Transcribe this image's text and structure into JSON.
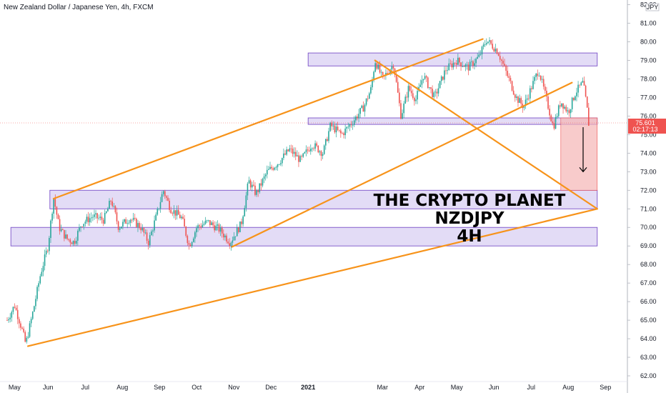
{
  "header": {
    "title": "New Zealand Dollar / Japanese Yen, 4h, FXCM"
  },
  "axis": {
    "currency": "JPY",
    "current_price": "75.601",
    "countdown": "02:17:13"
  },
  "overlay": {
    "line1": "THE CRYPTO PLANET",
    "line2": "NZDJPY",
    "line3": "4H"
  },
  "colors": {
    "background": "#ffffff",
    "zone_fill": "#d9d0f3",
    "zone_stroke": "#7b52c9",
    "trendline": "#f7931a",
    "candle_up": "#26a69a",
    "candle_down": "#ef5350",
    "target_box": "#f5b5b5",
    "price_tag": "#ef5350"
  },
  "chart_data": {
    "type": "candlestick",
    "symbol": "NZDJPY",
    "timeframe": "4h",
    "source": "FXCM",
    "y_axis_ticks": [
      62.0,
      63.0,
      64.0,
      65.0,
      66.0,
      67.0,
      68.0,
      69.0,
      70.0,
      71.0,
      72.0,
      73.0,
      74.0,
      75.0,
      76.0,
      77.0,
      78.0,
      79.0,
      80.0,
      81.0,
      82.0
    ],
    "x_axis_ticks": [
      {
        "label": "May",
        "t": 0.3
      },
      {
        "label": "Jun",
        "t": 1.2
      },
      {
        "label": "Jul",
        "t": 2.2
      },
      {
        "label": "Aug",
        "t": 3.2
      },
      {
        "label": "Sep",
        "t": 4.2
      },
      {
        "label": "Oct",
        "t": 5.2
      },
      {
        "label": "Nov",
        "t": 6.2
      },
      {
        "label": "Dec",
        "t": 7.2
      },
      {
        "label": "2021",
        "t": 8.2
      },
      {
        "label": "Mar",
        "t": 10.2
      },
      {
        "label": "Apr",
        "t": 11.2
      },
      {
        "label": "May",
        "t": 12.2
      },
      {
        "label": "Jun",
        "t": 13.2
      },
      {
        "label": "Jul",
        "t": 14.2
      },
      {
        "label": "Aug",
        "t": 15.2
      },
      {
        "label": "Sep",
        "t": 16.2
      }
    ],
    "ylim": [
      61.9,
      82.2
    ],
    "xlim": [
      0.1,
      16.5
    ],
    "price_path": [
      [
        0.1,
        65.0
      ],
      [
        0.3,
        65.8
      ],
      [
        0.5,
        64.5
      ],
      [
        0.6,
        63.7
      ],
      [
        0.8,
        65.5
      ],
      [
        1.0,
        67.5
      ],
      [
        1.2,
        69.0
      ],
      [
        1.35,
        71.6
      ],
      [
        1.5,
        70.0
      ],
      [
        1.7,
        69.4
      ],
      [
        1.9,
        69.2
      ],
      [
        2.1,
        70.2
      ],
      [
        2.4,
        70.6
      ],
      [
        2.7,
        70.4
      ],
      [
        2.9,
        71.5
      ],
      [
        3.1,
        70.0
      ],
      [
        3.4,
        70.5
      ],
      [
        3.7,
        70.0
      ],
      [
        3.9,
        69.2
      ],
      [
        4.1,
        70.5
      ],
      [
        4.3,
        72.0
      ],
      [
        4.5,
        71.0
      ],
      [
        4.8,
        70.5
      ],
      [
        5.0,
        69.0
      ],
      [
        5.2,
        70.0
      ],
      [
        5.5,
        70.3
      ],
      [
        5.8,
        69.9
      ],
      [
        6.1,
        69.2
      ],
      [
        6.4,
        70.2
      ],
      [
        6.6,
        72.5
      ],
      [
        6.8,
        71.8
      ],
      [
        7.1,
        73.0
      ],
      [
        7.4,
        73.5
      ],
      [
        7.7,
        74.2
      ],
      [
        8.0,
        73.6
      ],
      [
        8.3,
        74.5
      ],
      [
        8.6,
        74.0
      ],
      [
        8.8,
        75.5
      ],
      [
        9.1,
        75.0
      ],
      [
        9.4,
        75.7
      ],
      [
        9.7,
        76.5
      ],
      [
        9.9,
        77.5
      ],
      [
        10.0,
        79.0
      ],
      [
        10.2,
        78.0
      ],
      [
        10.5,
        78.8
      ],
      [
        10.7,
        76.0
      ],
      [
        10.9,
        77.5
      ],
      [
        11.1,
        76.9
      ],
      [
        11.3,
        78.2
      ],
      [
        11.6,
        77.0
      ],
      [
        11.9,
        78.5
      ],
      [
        12.2,
        79.0
      ],
      [
        12.5,
        78.6
      ],
      [
        12.8,
        79.2
      ],
      [
        13.0,
        80.1
      ],
      [
        13.3,
        79.5
      ],
      [
        13.6,
        78.0
      ],
      [
        13.8,
        77.0
      ],
      [
        14.0,
        76.5
      ],
      [
        14.2,
        77.5
      ],
      [
        14.4,
        78.5
      ],
      [
        14.6,
        77.0
      ],
      [
        14.8,
        75.4
      ],
      [
        15.0,
        76.8
      ],
      [
        15.2,
        76.2
      ],
      [
        15.4,
        77.3
      ],
      [
        15.6,
        77.8
      ],
      [
        15.7,
        76.5
      ],
      [
        15.75,
        75.6
      ]
    ],
    "zones": [
      {
        "x1": 8.2,
        "x2": 15.98,
        "ymin": 78.7,
        "ymax": 79.4
      },
      {
        "x1": 8.2,
        "x2": 15.98,
        "ymin": 75.55,
        "ymax": 75.9
      },
      {
        "x1": 1.25,
        "x2": 15.98,
        "ymin": 71.0,
        "ymax": 72.0
      },
      {
        "x1": 0.2,
        "x2": 15.98,
        "ymin": 69.0,
        "ymax": 70.0
      }
    ],
    "trendlines": [
      {
        "x1": 0.66,
        "y1": 63.6,
        "x2": 15.98,
        "y2": 71.0
      },
      {
        "x1": 1.35,
        "y1": 71.55,
        "x2": 12.9,
        "y2": 80.15
      },
      {
        "x1": 6.15,
        "y1": 68.95,
        "x2": 15.3,
        "y2": 77.8
      },
      {
        "x1": 10.0,
        "y1": 79.0,
        "x2": 15.98,
        "y2": 71.0
      }
    ],
    "target_box": {
      "x1": 15.0,
      "x2": 15.98,
      "ymin": 72.0,
      "ymax": 75.9
    },
    "arrow": {
      "x": 15.6,
      "y_from": 75.4,
      "y_to": 73.0
    },
    "current_price_value": 75.601
  }
}
